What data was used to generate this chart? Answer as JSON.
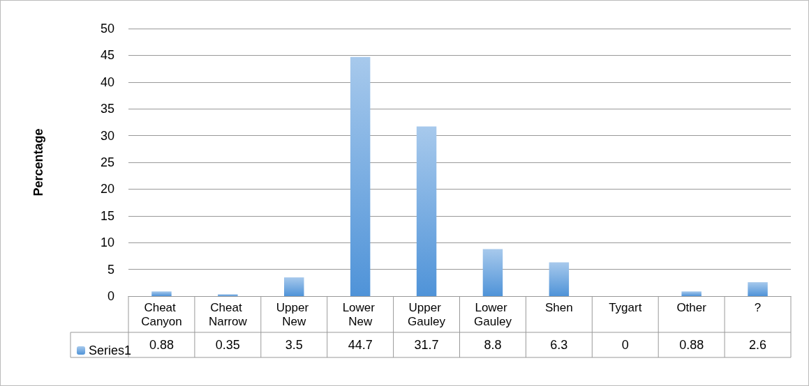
{
  "chart_data": {
    "type": "bar",
    "ylabel": "Percentage",
    "categories": [
      "Cheat Canyon",
      "Cheat Narrow",
      "Upper New",
      "Lower New",
      "Upper Gauley",
      "Lower Gauley",
      "Shen",
      "Tygart",
      "Other",
      "?"
    ],
    "series": [
      {
        "name": "Series1",
        "color": "#4f93d8",
        "values": [
          0.88,
          0.35,
          3.5,
          44.7,
          31.7,
          8.8,
          6.3,
          0,
          0.88,
          2.6
        ]
      }
    ],
    "ylim": [
      0,
      50
    ],
    "yticks": [
      0,
      5,
      10,
      15,
      20,
      25,
      30,
      35,
      40,
      45,
      50
    ],
    "grid": "y",
    "legend": "bottom",
    "data_labels": true
  }
}
